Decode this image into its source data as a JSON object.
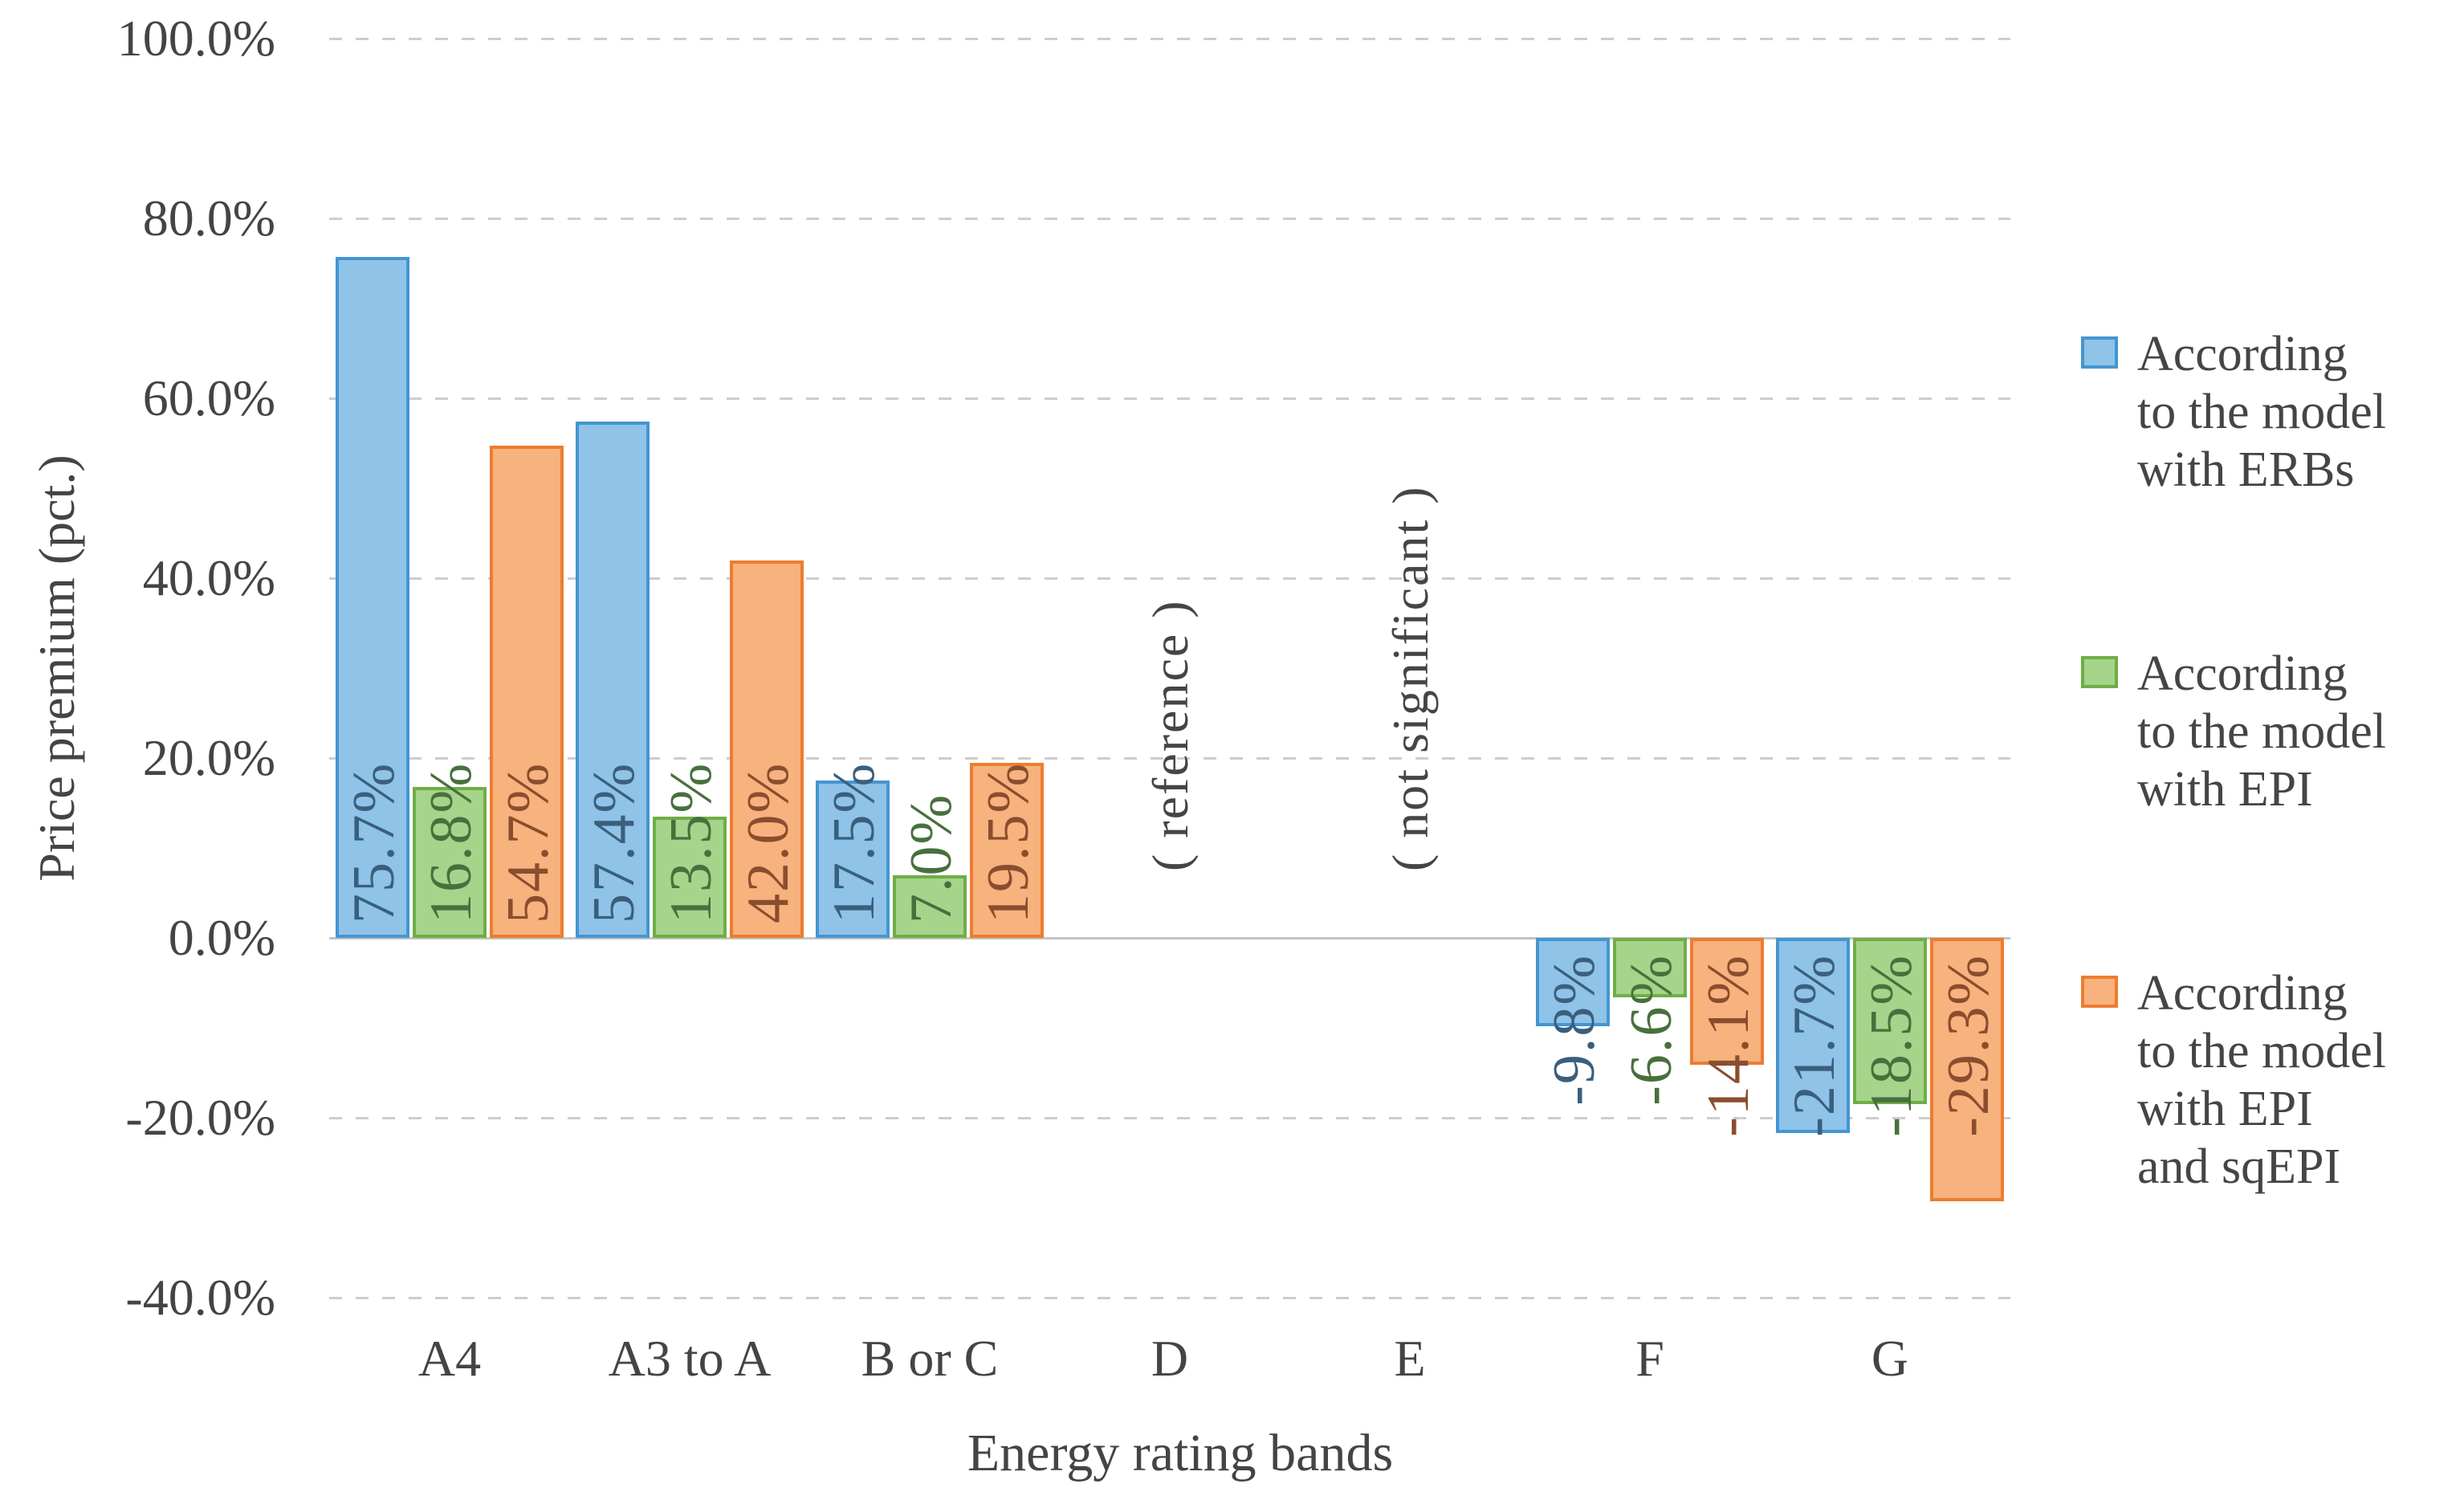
{
  "chart_data": {
    "type": "bar",
    "title": "",
    "xlabel": "Energy rating bands",
    "ylabel": "Price premium (pct.)",
    "categories": [
      "A4",
      "A3 to A",
      "B or C",
      "D",
      "E",
      "F",
      "G"
    ],
    "series": [
      {
        "name": "According to the model with ERBs",
        "name_lines": [
          "According",
          "to the model",
          "with ERBs"
        ],
        "fill": "#8FC3E8",
        "border": "#4396D2",
        "label_color": "#3A5F7D",
        "values": [
          75.7,
          57.4,
          17.5,
          null,
          null,
          -9.8,
          -21.7
        ],
        "labels": [
          "75.7%",
          "57.4%",
          "17.5%",
          null,
          null,
          "-9.8%",
          "-21.7%"
        ]
      },
      {
        "name": "According to the model with EPI",
        "name_lines": [
          "According",
          "to the model",
          "with EPI"
        ],
        "fill": "#A6D48B",
        "border": "#6FAE46",
        "label_color": "#47703D",
        "values": [
          16.8,
          13.5,
          7.0,
          null,
          null,
          -6.6,
          -18.5
        ],
        "labels": [
          "16.8%",
          "13.5%",
          "7.0%",
          null,
          null,
          "-6.6%",
          "-18.5%"
        ]
      },
      {
        "name": "According to the model with EPI and sqEPI",
        "name_lines": [
          "According",
          "to the model",
          "with EPI",
          "and sqEPI"
        ],
        "fill": "#F7B27E",
        "border": "#ED7D31",
        "label_color": "#8A4D2E",
        "values": [
          54.7,
          42.0,
          19.5,
          null,
          null,
          -14.1,
          -29.3
        ],
        "labels": [
          "54.7%",
          "42.0%",
          "19.5%",
          null,
          null,
          "-14.1%",
          "-29.3%"
        ]
      }
    ],
    "annotations": [
      {
        "category": "D",
        "text": "( reference )"
      },
      {
        "category": "E",
        "text": "( not significant )"
      }
    ],
    "y_ticks": [
      {
        "label": "100.0%",
        "value": 100
      },
      {
        "label": "80.0%",
        "value": 80
      },
      {
        "label": "60.0%",
        "value": 60
      },
      {
        "label": "40.0%",
        "value": 40
      },
      {
        "label": "20.0%",
        "value": 20
      },
      {
        "label": "0.0%",
        "value": 0
      },
      {
        "label": "-20.0%",
        "value": -20
      },
      {
        "label": "-40.0%",
        "value": -40
      }
    ],
    "ylim": [
      -40,
      100
    ],
    "grid": "horizontal dashed",
    "legend_position": "right",
    "grid_color": "#CDCDCD",
    "axis_color": "#C4C4C4",
    "text_color": "#444444"
  }
}
